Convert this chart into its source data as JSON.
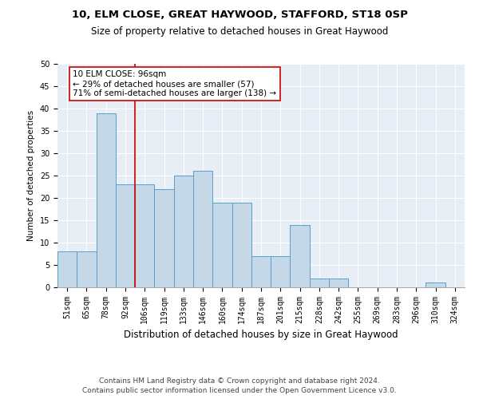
{
  "title1": "10, ELM CLOSE, GREAT HAYWOOD, STAFFORD, ST18 0SP",
  "title2": "Size of property relative to detached houses in Great Haywood",
  "xlabel": "Distribution of detached houses by size in Great Haywood",
  "ylabel": "Number of detached properties",
  "footer1": "Contains HM Land Registry data © Crown copyright and database right 2024.",
  "footer2": "Contains public sector information licensed under the Open Government Licence v3.0.",
  "bin_labels": [
    "51sqm",
    "65sqm",
    "78sqm",
    "92sqm",
    "106sqm",
    "119sqm",
    "133sqm",
    "146sqm",
    "160sqm",
    "174sqm",
    "187sqm",
    "201sqm",
    "215sqm",
    "228sqm",
    "242sqm",
    "255sqm",
    "269sqm",
    "283sqm",
    "296sqm",
    "310sqm",
    "324sqm"
  ],
  "values": [
    8,
    8,
    39,
    23,
    23,
    22,
    25,
    26,
    19,
    19,
    7,
    7,
    14,
    2,
    2,
    0,
    0,
    0,
    0,
    1,
    0
  ],
  "bar_color": "#c5d8e8",
  "bar_edgecolor": "#5a9ec9",
  "bar_width": 1.0,
  "redline_x": 3.5,
  "annotation_text": "10 ELM CLOSE: 96sqm\n← 29% of detached houses are smaller (57)\n71% of semi-detached houses are larger (138) →",
  "annotation_box_edgecolor": "#cc0000",
  "ylim": [
    0,
    50
  ],
  "yticks": [
    0,
    5,
    10,
    15,
    20,
    25,
    30,
    35,
    40,
    45,
    50
  ],
  "background_color": "#e8eef5",
  "grid_color": "#ffffff",
  "title1_fontsize": 9.5,
  "title2_fontsize": 8.5,
  "xlabel_fontsize": 8.5,
  "ylabel_fontsize": 7.5,
  "tick_fontsize": 7,
  "footer_fontsize": 6.5,
  "annot_fontsize": 7.5
}
